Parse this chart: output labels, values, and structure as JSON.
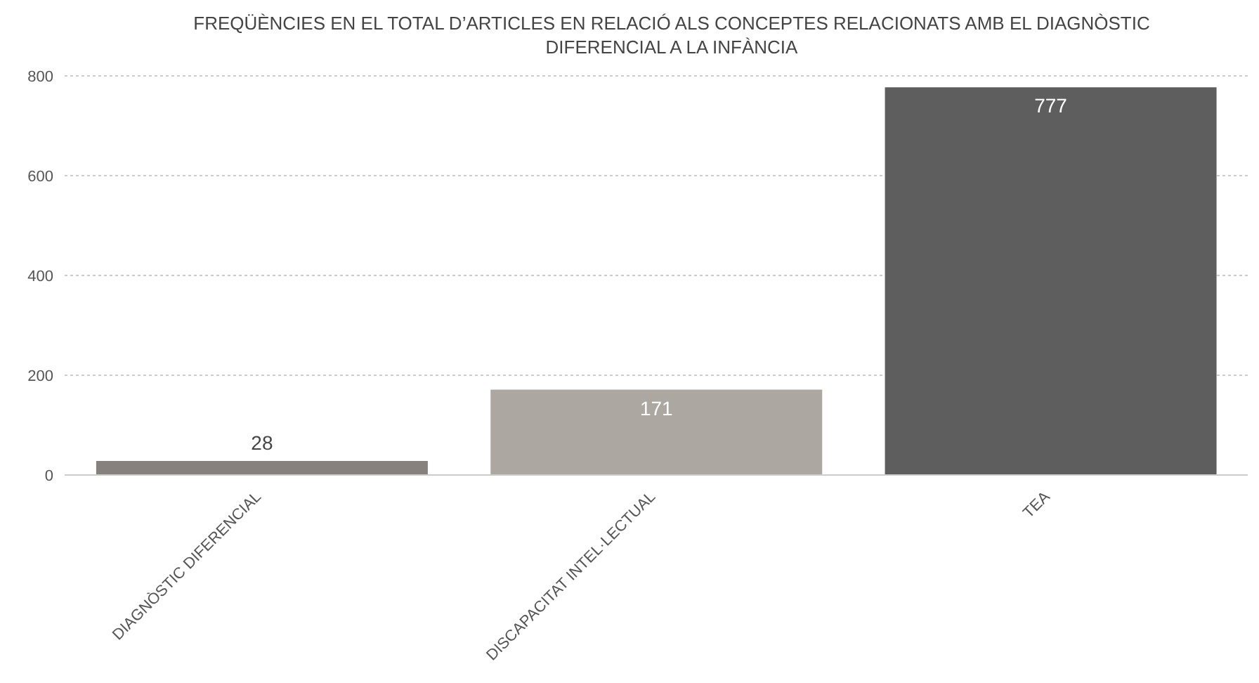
{
  "chart_data": {
    "type": "bar",
    "title": "FREQÜÈNCIES EN EL TOTAL D’ARTICLES EN RELACIÓ ALS CONCEPTES RELACIONATS AMB EL  DIAGNÒSTIC DIFERENCIAL A LA INFÀNCIA",
    "categories": [
      "DIAGNÒSTIC DIFERENCIAL",
      "DISCAPACITAT INTEL·LECTUAL",
      "TEA"
    ],
    "values": [
      28,
      171,
      777
    ],
    "colors": [
      "#86817c",
      "#aca8a1",
      "#5e5e5e"
    ],
    "ylim": [
      0,
      800
    ],
    "yticks": [
      0,
      200,
      400,
      600,
      800
    ],
    "grid": "y",
    "data_labels": true
  }
}
